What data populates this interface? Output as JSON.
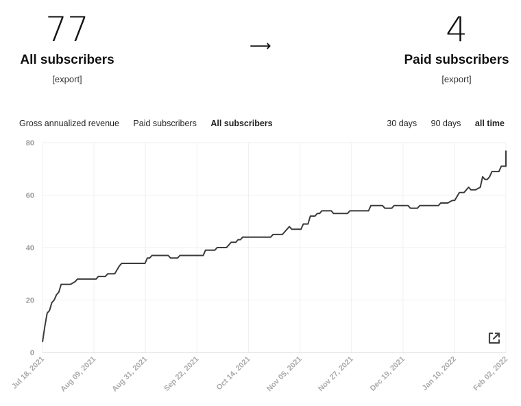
{
  "summary": {
    "all_subscribers": {
      "value": "77",
      "label": "All subscribers",
      "export": "[export]"
    },
    "arrow": "⟶",
    "paid_subscribers": {
      "value": "4",
      "label": "Paid subscribers",
      "export": "[export]"
    }
  },
  "metric_tabs": [
    {
      "label": "Gross annualized revenue",
      "active": false
    },
    {
      "label": "Paid subscribers",
      "active": false
    },
    {
      "label": "All subscribers",
      "active": true
    }
  ],
  "range_tabs": [
    {
      "label": "30 days",
      "active": false
    },
    {
      "label": "90 days",
      "active": false
    },
    {
      "label": "all time",
      "active": true
    }
  ],
  "colors": {
    "line": "#3a3a3a",
    "grid": "#efefef",
    "axis_text": "#a0a0a0"
  },
  "icons": {
    "chart_corner": "external-link-icon"
  },
  "chart_data": {
    "type": "line",
    "title": "",
    "xlabel": "",
    "ylabel": "",
    "ylim": [
      0,
      80
    ],
    "yticks": [
      0,
      20,
      40,
      60,
      80
    ],
    "x_ticks": [
      "Jul 18, 2021",
      "Aug 09, 2021",
      "Aug 31, 2021",
      "Sep 22, 2021",
      "Oct 14, 2021",
      "Nov 05, 2021",
      "Nov 27, 2021",
      "Dec 19, 2021",
      "Jan 10, 2022",
      "Feb 02, 2022"
    ],
    "xlim": [
      "2021-07-18",
      "2022-02-02"
    ],
    "grid": true,
    "series": [
      {
        "points": [
          [
            "2021-07-18",
            4
          ],
          [
            "2021-07-19",
            10
          ],
          [
            "2021-07-20",
            15
          ],
          [
            "2021-07-21",
            16
          ],
          [
            "2021-07-22",
            19
          ],
          [
            "2021-07-23",
            20
          ],
          [
            "2021-07-24",
            22
          ],
          [
            "2021-07-25",
            23
          ],
          [
            "2021-07-26",
            26
          ],
          [
            "2021-07-30",
            26
          ],
          [
            "2021-08-01",
            27
          ],
          [
            "2021-08-02",
            28
          ],
          [
            "2021-08-10",
            28
          ],
          [
            "2021-08-11",
            29
          ],
          [
            "2021-08-14",
            29
          ],
          [
            "2021-08-15",
            30
          ],
          [
            "2021-08-18",
            30
          ],
          [
            "2021-08-20",
            33
          ],
          [
            "2021-08-21",
            34
          ],
          [
            "2021-08-31",
            34
          ],
          [
            "2021-09-01",
            36
          ],
          [
            "2021-09-02",
            36
          ],
          [
            "2021-09-03",
            37
          ],
          [
            "2021-09-10",
            37
          ],
          [
            "2021-09-11",
            36
          ],
          [
            "2021-09-14",
            36
          ],
          [
            "2021-09-15",
            37
          ],
          [
            "2021-09-25",
            37
          ],
          [
            "2021-09-26",
            39
          ],
          [
            "2021-09-30",
            39
          ],
          [
            "2021-10-01",
            40
          ],
          [
            "2021-10-05",
            40
          ],
          [
            "2021-10-07",
            42
          ],
          [
            "2021-10-09",
            42
          ],
          [
            "2021-10-10",
            43
          ],
          [
            "2021-10-11",
            43
          ],
          [
            "2021-10-12",
            44
          ],
          [
            "2021-10-24",
            44
          ],
          [
            "2021-10-25",
            45
          ],
          [
            "2021-10-29",
            45
          ],
          [
            "2021-10-31",
            47
          ],
          [
            "2021-11-01",
            48
          ],
          [
            "2021-11-02",
            47
          ],
          [
            "2021-11-06",
            47
          ],
          [
            "2021-11-07",
            49
          ],
          [
            "2021-11-09",
            49
          ],
          [
            "2021-11-10",
            52
          ],
          [
            "2021-11-12",
            52
          ],
          [
            "2021-11-13",
            53
          ],
          [
            "2021-11-14",
            53
          ],
          [
            "2021-11-15",
            54
          ],
          [
            "2021-11-19",
            54
          ],
          [
            "2021-11-20",
            53
          ],
          [
            "2021-11-26",
            53
          ],
          [
            "2021-11-27",
            54
          ],
          [
            "2021-12-05",
            54
          ],
          [
            "2021-12-06",
            56
          ],
          [
            "2021-12-11",
            56
          ],
          [
            "2021-12-12",
            55
          ],
          [
            "2021-12-15",
            55
          ],
          [
            "2021-12-16",
            56
          ],
          [
            "2021-12-22",
            56
          ],
          [
            "2021-12-23",
            55
          ],
          [
            "2021-12-26",
            55
          ],
          [
            "2021-12-27",
            56
          ],
          [
            "2022-01-04",
            56
          ],
          [
            "2022-01-05",
            57
          ],
          [
            "2022-01-08",
            57
          ],
          [
            "2022-01-10",
            58
          ],
          [
            "2022-01-11",
            58
          ],
          [
            "2022-01-13",
            61
          ],
          [
            "2022-01-15",
            61
          ],
          [
            "2022-01-17",
            63
          ],
          [
            "2022-01-18",
            62
          ],
          [
            "2022-01-20",
            62
          ],
          [
            "2022-01-22",
            63
          ],
          [
            "2022-01-23",
            67
          ],
          [
            "2022-01-24",
            66
          ],
          [
            "2022-01-25",
            66
          ],
          [
            "2022-01-26",
            67
          ],
          [
            "2022-01-27",
            69
          ],
          [
            "2022-01-30",
            69
          ],
          [
            "2022-01-31",
            71
          ],
          [
            "2022-02-02",
            71
          ],
          [
            "2022-02-03",
            72
          ],
          [
            "2022-02-04",
            72
          ],
          [
            "2022-02-05",
            74
          ],
          [
            "2022-02-06",
            77
          ]
        ]
      }
    ]
  }
}
